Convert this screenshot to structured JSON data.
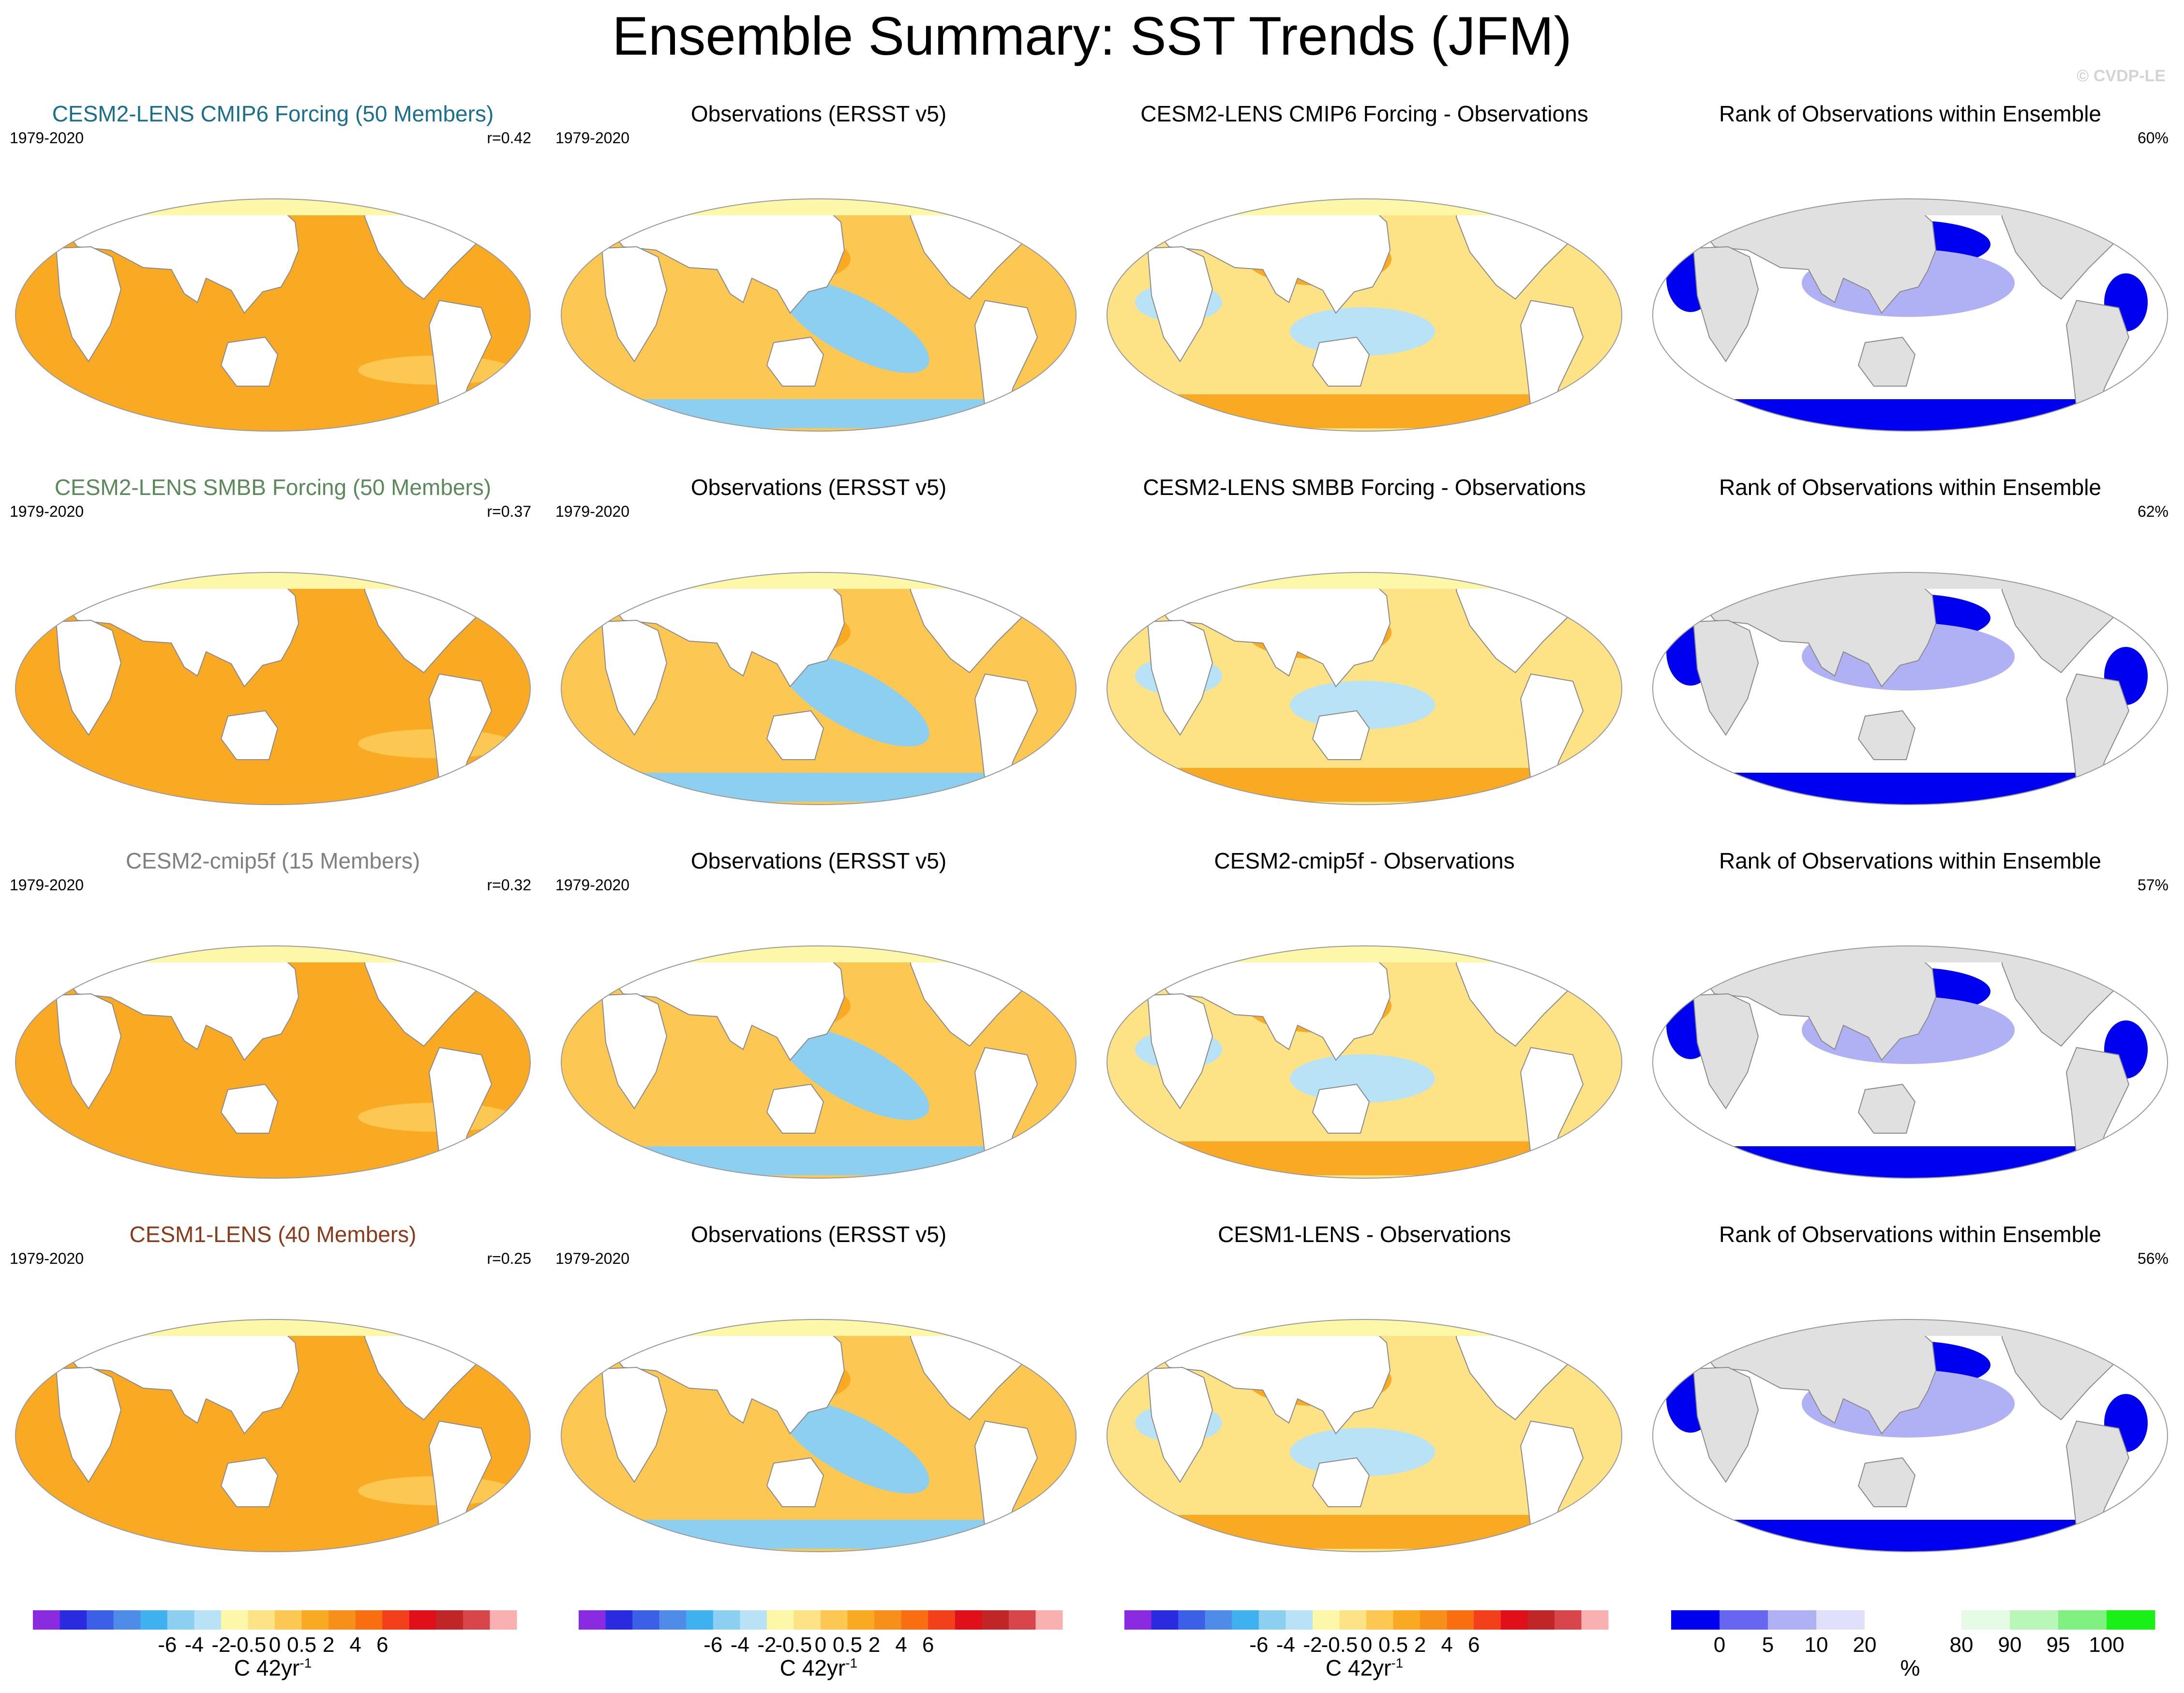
{
  "title": "Ensemble Summary: SST Trends (JFM)",
  "credit": "© CVDP-LE",
  "colors": {
    "cesm2_cmip6": "#1a6f8f",
    "cesm2_smbb": "#5a8a5a",
    "cesm2_cmip5f": "#808080",
    "cesm1_lens": "#8b3a1a",
    "land": "#e0e0e0",
    "trend_scale": [
      "#8a2be2",
      "#2a2ae0",
      "#3b5fe6",
      "#4f8be8",
      "#3fb0f0",
      "#8ccff0",
      "#b8e2f5",
      "#fdf8a8",
      "#fde385",
      "#fdc852",
      "#f9aa22",
      "#f7901a",
      "#f86e10",
      "#f4401a",
      "#e0101a",
      "#c02528",
      "#d8454a",
      "#f8b0b0"
    ],
    "rank_scale": [
      "#0000f0",
      "#6666f0",
      "#b0b0f5",
      "#e0e0fa",
      "#ffffff",
      "#ffffff",
      "#e5fbe5",
      "#b8f7b8",
      "#80f080",
      "#18f018"
    ]
  },
  "rows": [
    {
      "model": {
        "title": "CESM2-LENS CMIP6 Forcing (50 Members)",
        "period": "1979-2020",
        "stat": "r=0.42"
      },
      "obs": {
        "title": "Observations (ERSST v5)",
        "period": "1979-2020"
      },
      "diff": {
        "title": "CESM2-LENS CMIP6 Forcing - Observations"
      },
      "rank": {
        "title": "Rank of Observations within Ensemble",
        "stat": "60%"
      }
    },
    {
      "model": {
        "title": "CESM2-LENS SMBB Forcing (50 Members)",
        "period": "1979-2020",
        "stat": "r=0.37"
      },
      "obs": {
        "title": "Observations (ERSST v5)",
        "period": "1979-2020"
      },
      "diff": {
        "title": "CESM2-LENS SMBB Forcing - Observations"
      },
      "rank": {
        "title": "Rank of Observations within Ensemble",
        "stat": "62%"
      }
    },
    {
      "model": {
        "title": "CESM2-cmip5f (15 Members)",
        "period": "1979-2020",
        "stat": "r=0.32"
      },
      "obs": {
        "title": "Observations (ERSST v5)",
        "period": "1979-2020"
      },
      "diff": {
        "title": "CESM2-cmip5f - Observations"
      },
      "rank": {
        "title": "Rank of Observations within Ensemble",
        "stat": "57%"
      }
    },
    {
      "model": {
        "title": "CESM1-LENS (40 Members)",
        "period": "1979-2020",
        "stat": "r=0.25"
      },
      "obs": {
        "title": "Observations (ERSST v5)",
        "period": "1979-2020"
      },
      "diff": {
        "title": "CESM1-LENS - Observations"
      },
      "rank": {
        "title": "Rank of Observations within Ensemble",
        "stat": "56%"
      }
    }
  ],
  "trend_colorbar": {
    "ticks": [
      "-6",
      "-4",
      "-2",
      "-0.5",
      "0",
      "0.5",
      "2",
      "4",
      "6"
    ],
    "label": "C 42yr",
    "label_exp": "-1"
  },
  "rank_colorbar": {
    "ticks": [
      "0",
      "5",
      "10",
      "20",
      "80",
      "90",
      "95",
      "100"
    ],
    "label": "%"
  }
}
